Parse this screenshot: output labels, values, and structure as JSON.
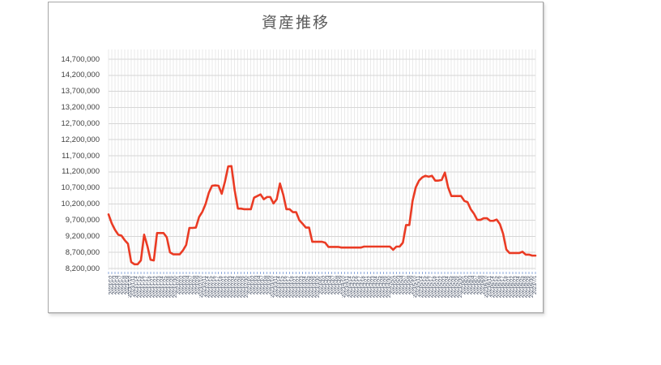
{
  "chart_data": {
    "type": "line",
    "title": "資産推移",
    "legend": "none",
    "grid": true,
    "ylim": [
      8200000,
      14700000
    ],
    "y_tick_step": 500000,
    "y_tick_labels": [
      "14,700,000",
      "14,200,000",
      "13,700,000",
      "13,200,000",
      "12,700,000",
      "12,200,000",
      "11,700,000",
      "11,200,000",
      "10,700,000",
      "10,200,000",
      "9,700,000",
      "9,200,000",
      "8,700,000",
      "8,200,000"
    ],
    "y_tick_values": [
      14700000,
      14200000,
      13700000,
      13200000,
      12700000,
      12200000,
      11700000,
      11200000,
      10700000,
      10200000,
      9700000,
      9200000,
      8700000,
      8200000
    ],
    "x_labels": [
      "2023/1/1",
      "2023/1/2",
      "2023/1/3",
      "2023/1/4",
      "2023/1/7",
      "2023/1/8",
      "2023/1/9",
      "2023/1/10",
      "2023/1/11",
      "2023/1/14",
      "2023/1/15",
      "2023/1/16",
      "2023/1/17",
      "2023/1/18",
      "2023/1/21",
      "2023/1/22",
      "2023/1/23",
      "2023/1/24",
      "2023/1/25",
      "2023/1/28",
      "2023/1/29",
      "2023/1/30",
      "2023/2/1",
      "2023/2/2",
      "2023/2/3",
      "2023/2/4",
      "2023/2/7",
      "2023/2/8",
      "2023/2/9",
      "2023/2/10",
      "2023/2/11",
      "2023/2/14",
      "2023/2/15",
      "2023/2/16",
      "2023/2/17",
      "2023/2/18",
      "2023/2/21",
      "2023/2/22",
      "2023/2/23",
      "2023/2/24",
      "2023/2/25",
      "2023/2/28",
      "2023/2/29",
      "2023/2/30",
      "2023/3/1",
      "2023/3/2",
      "2023/3/3",
      "2023/3/4",
      "2023/3/7",
      "2023/3/8",
      "2023/3/9",
      "2023/3/10",
      "2023/3/11",
      "2023/3/14",
      "2023/3/15",
      "2023/3/16",
      "2023/3/17",
      "2023/3/18",
      "2023/3/21",
      "2023/3/22",
      "2023/3/23",
      "2023/3/24",
      "2023/3/25",
      "2023/3/28",
      "2023/3/29",
      "2023/3/30",
      "2023/4/1",
      "2023/4/2",
      "2023/4/3",
      "2023/4/4",
      "2023/4/7",
      "2023/4/8",
      "2023/4/9",
      "2023/4/10",
      "2023/4/11",
      "2023/4/14",
      "2023/4/15",
      "2023/4/16",
      "2023/4/17",
      "2023/4/18",
      "2023/4/21",
      "2023/4/22",
      "2023/4/23",
      "2023/4/24",
      "2023/4/25",
      "2023/4/28",
      "2023/4/29",
      "2023/4/30",
      "2023/5/1",
      "2023/5/2",
      "2023/5/3",
      "2023/5/4",
      "2023/5/7",
      "2023/5/8",
      "2023/5/9",
      "2023/5/10",
      "2023/5/11",
      "2023/5/14",
      "2023/5/15",
      "2023/5/16",
      "2023/5/17",
      "2023/5/18",
      "2023/5/21",
      "2023/5/22",
      "2023/5/23",
      "2023/5/24",
      "2023/5/25",
      "2023/5/28",
      "2023/5/29",
      "2023/5/30",
      "2023/6/1",
      "2023/6/2",
      "2023/6/3",
      "2023/6/4",
      "2023/6/7",
      "2023/6/8",
      "2023/6/9",
      "2023/6/10",
      "2023/6/11",
      "2023/6/14",
      "2023/6/15",
      "2023/6/16",
      "2023/6/17",
      "2023/6/18",
      "2023/6/21",
      "2023/6/22",
      "2023/6/23",
      "2023/6/24",
      "2023/6/25",
      "2023/6/28",
      "2023/6/29",
      "2023/6/30",
      "2023/7/1"
    ],
    "series": [
      {
        "values": [
          9880000,
          9600000,
          9400000,
          9250000,
          9220000,
          9080000,
          8970000,
          8400000,
          8330000,
          8330000,
          8450000,
          9250000,
          8900000,
          8470000,
          8450000,
          9300000,
          9300000,
          9300000,
          9170000,
          8700000,
          8640000,
          8640000,
          8640000,
          8760000,
          8930000,
          9460000,
          9460000,
          9470000,
          9800000,
          9960000,
          10200000,
          10550000,
          10770000,
          10780000,
          10770000,
          10520000,
          10900000,
          11370000,
          11380000,
          10630000,
          10060000,
          10060000,
          10040000,
          10040000,
          10040000,
          10400000,
          10450000,
          10500000,
          10350000,
          10420000,
          10420000,
          10220000,
          10350000,
          10840000,
          10500000,
          10040000,
          10040000,
          9950000,
          9950000,
          9700000,
          9590000,
          9470000,
          9470000,
          9030000,
          9030000,
          9030000,
          9030000,
          9000000,
          8870000,
          8870000,
          8870000,
          8870000,
          8850000,
          8850000,
          8850000,
          8850000,
          8850000,
          8850000,
          8850000,
          8880000,
          8880000,
          8880000,
          8880000,
          8880000,
          8880000,
          8880000,
          8880000,
          8880000,
          8780000,
          8880000,
          8880000,
          9000000,
          9550000,
          9550000,
          10300000,
          10720000,
          10930000,
          11030000,
          11080000,
          11050000,
          11080000,
          10930000,
          10930000,
          10950000,
          11180000,
          10720000,
          10450000,
          10450000,
          10450000,
          10450000,
          10300000,
          10260000,
          10040000,
          9900000,
          9710000,
          9710000,
          9760000,
          9760000,
          9680000,
          9680000,
          9720000,
          9580000,
          9280000,
          8790000,
          8680000,
          8680000,
          8680000,
          8680000,
          8720000,
          8630000,
          8630000,
          8600000,
          8600000
        ]
      }
    ],
    "colors": {
      "line": "#ea3b24",
      "h_gridline": "#d6d6d6",
      "v_gridline": "#eaeaea",
      "axis_tick_dash": "#8ea9db",
      "title_text": "#595959",
      "y_tick_text": "#404040",
      "x_tick_text": "#3f4a5f",
      "frame_border": "#a7a7a7",
      "background": "#ffffff"
    }
  }
}
